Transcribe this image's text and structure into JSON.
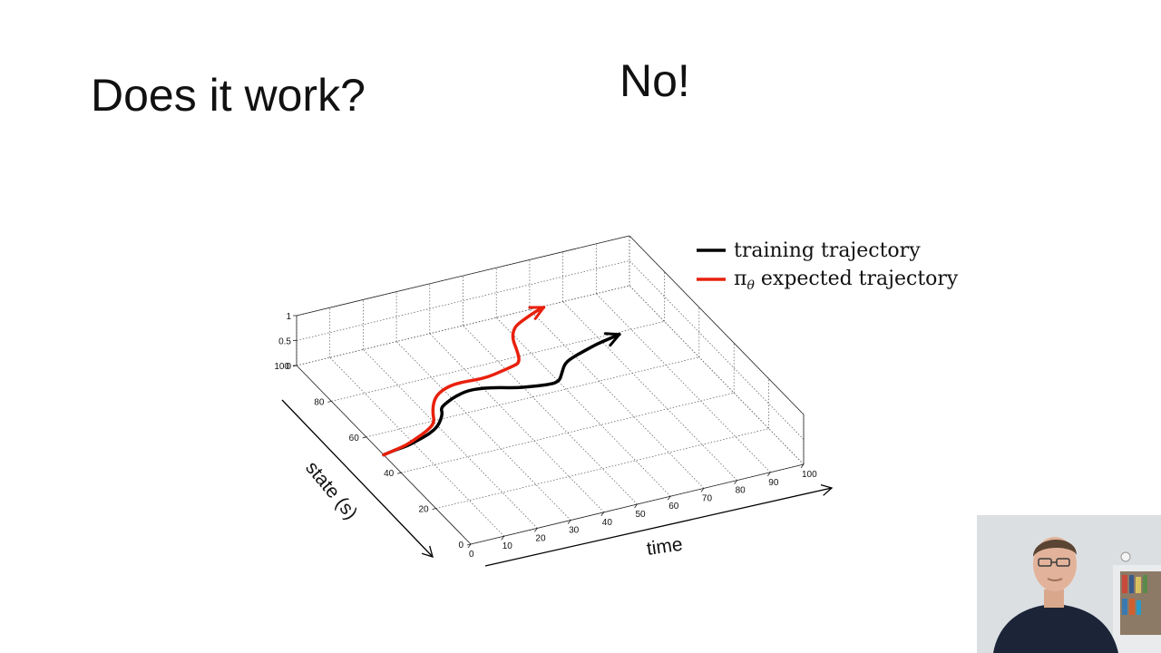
{
  "slide": {
    "title": "Does it work?",
    "answer": "No!"
  },
  "colors": {
    "training": "#000000",
    "expected": "#e8200c",
    "grid": "#555555"
  },
  "chart_data": {
    "type": "line",
    "projection": "3d",
    "xlabel": "time",
    "ylabel": "state (s)",
    "xlim": [
      0,
      100
    ],
    "ylim": [
      0,
      100
    ],
    "zlim": [
      0,
      1
    ],
    "x_ticks": [
      0,
      10,
      20,
      30,
      40,
      50,
      60,
      70,
      80,
      90,
      100
    ],
    "y_ticks": [
      0,
      20,
      40,
      60,
      80,
      100
    ],
    "z_ticks": [
      0,
      0.5,
      1
    ],
    "x_tick_labels": [
      "0",
      "10",
      "20",
      "30",
      "40",
      "50",
      "60",
      "70",
      "80",
      "90",
      "100"
    ],
    "y_tick_labels": [
      "0",
      "20",
      "40",
      "60",
      "80",
      "100"
    ],
    "z_tick_labels": [
      "0",
      "0.5",
      "1"
    ],
    "grid": true,
    "legend": {
      "placement": "top-right",
      "entries": [
        {
          "name": "training trajectory",
          "color": "#000000"
        },
        {
          "name": "π",
          "subscript": "θ",
          "suffix": " expected trajectory",
          "color": "#e8200c"
        }
      ]
    },
    "series": [
      {
        "name": "training trajectory",
        "color": "#000000",
        "x": [
          0,
          4,
          8,
          12,
          16,
          20,
          24,
          25,
          28,
          32,
          36,
          40,
          44,
          48,
          52,
          56,
          60,
          63,
          66,
          70,
          74,
          78,
          82,
          86
        ],
        "y": [
          50,
          51,
          51.5,
          53,
          54.5,
          57,
          62,
          65,
          67,
          69,
          70,
          69.5,
          68,
          66,
          65,
          64,
          64,
          68,
          72,
          74,
          75.5,
          77,
          78,
          79
        ]
      },
      {
        "name": "π θ expected trajectory",
        "color": "#e8200c",
        "x": [
          0,
          4,
          8,
          12,
          16,
          20,
          22,
          25,
          28,
          32,
          36,
          40,
          44,
          48,
          52,
          55,
          57,
          59,
          62,
          65,
          68,
          71,
          74
        ],
        "y": [
          50,
          51,
          52,
          54,
          56,
          59,
          64,
          69,
          72,
          74,
          74.5,
          74,
          74,
          75,
          76,
          77,
          82,
          89,
          93.5,
          95.5,
          97,
          98.5,
          99.5
        ]
      }
    ]
  }
}
